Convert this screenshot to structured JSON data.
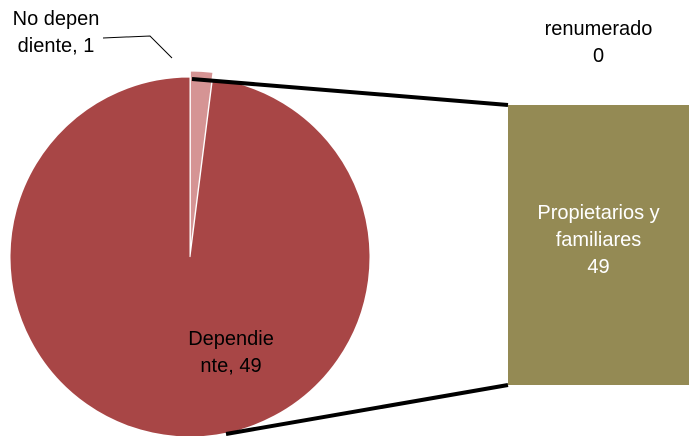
{
  "chart_data": {
    "type": "pie-of-bar",
    "pie": {
      "categories": [
        "Dependiente",
        "No dependiente"
      ],
      "values": [
        49,
        1
      ],
      "value_labels": [
        "Dependiente, 49",
        "No dependiente, 1"
      ],
      "colors": [
        "#a84646",
        "#d59494"
      ]
    },
    "bar": {
      "categories": [
        "Propietarios y familiares",
        "renumerado"
      ],
      "values": [
        49,
        0
      ],
      "colors": [
        "#948a54",
        "#b3a97a"
      ]
    }
  }
}
